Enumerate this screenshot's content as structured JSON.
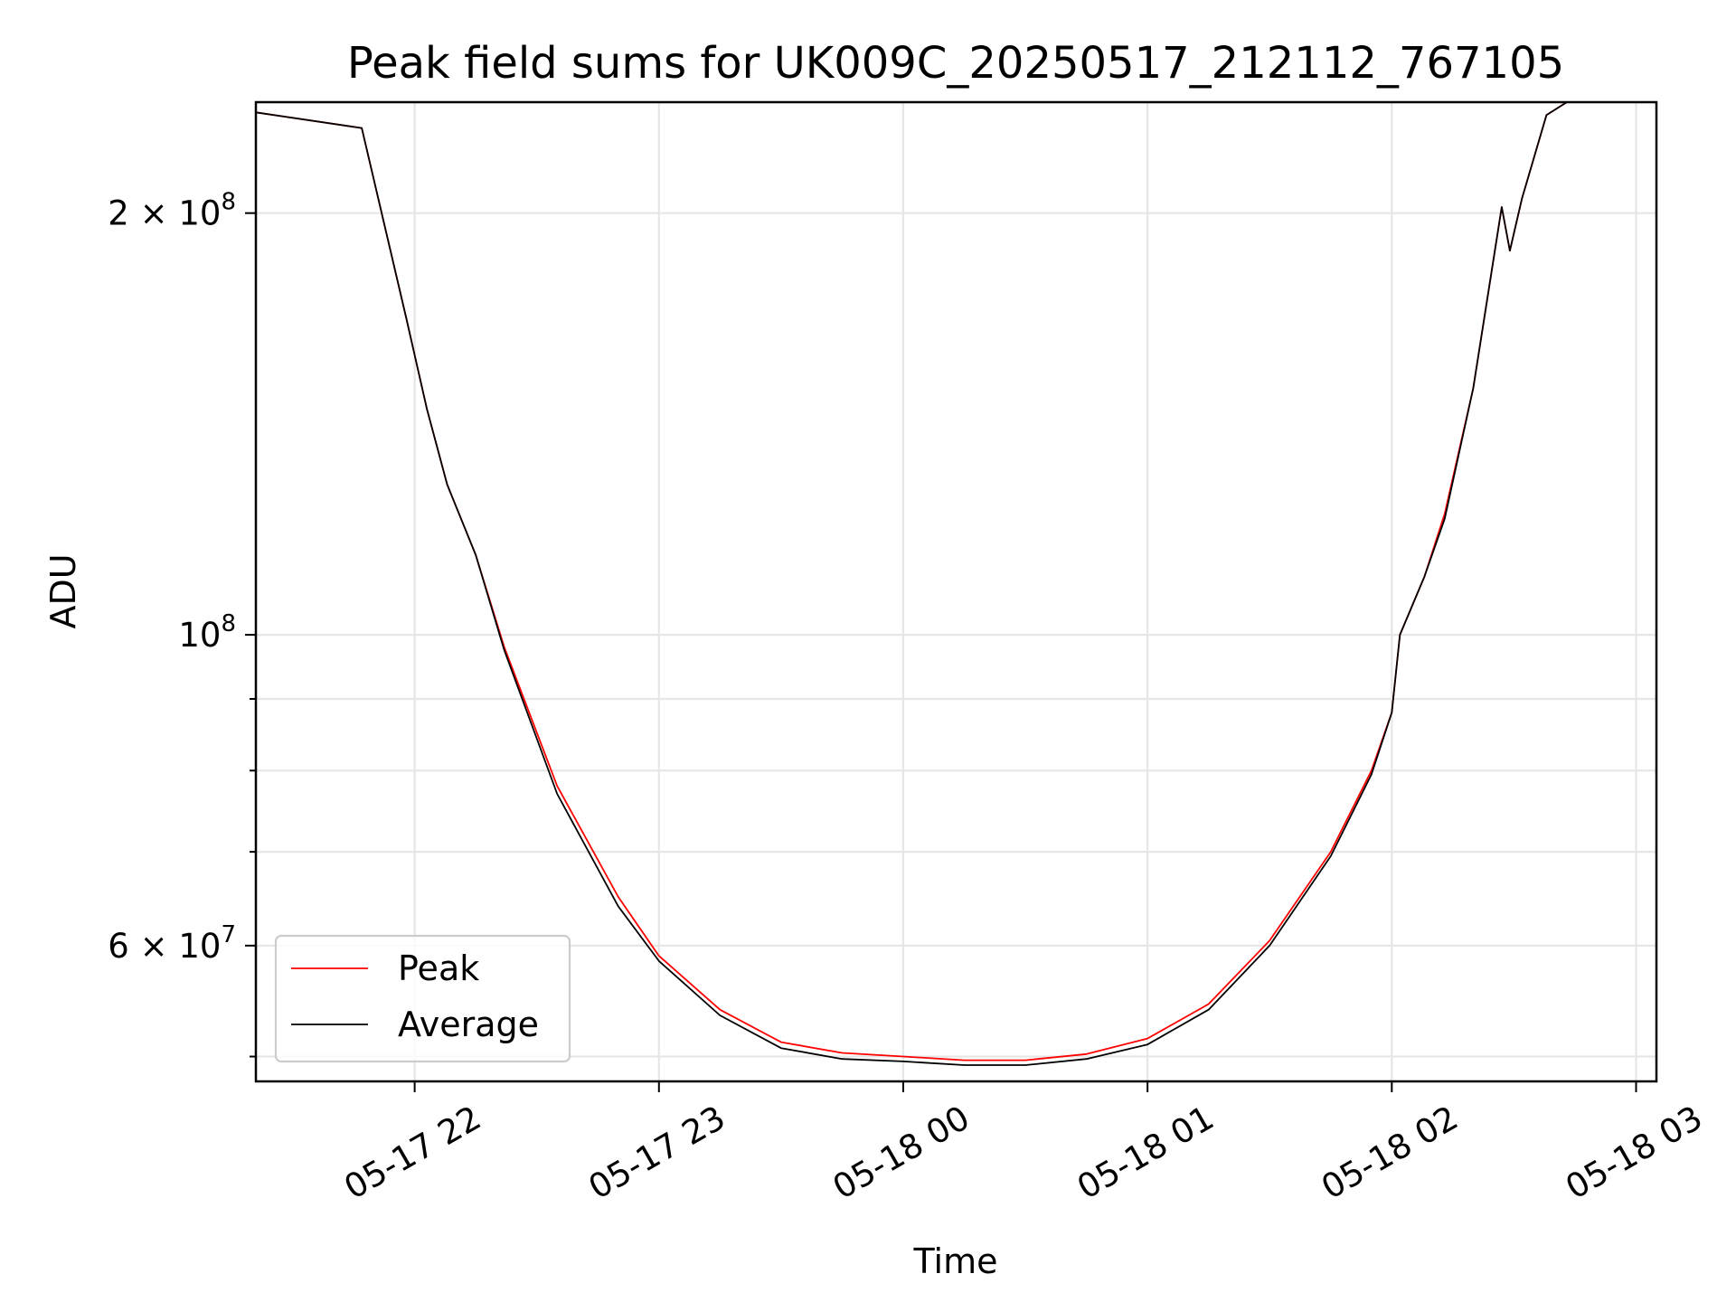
{
  "chart_data": {
    "type": "line",
    "title": "Peak field sums for UK009C_20250517_212112_767105",
    "xlabel": "Time",
    "ylabel": "ADU",
    "yscale": "log",
    "xlim": [
      "2025-05-17 21:21",
      "2025-05-18 03:05"
    ],
    "ylim": [
      48000000,
      240000000
    ],
    "grid": true,
    "legend_position": "lower left",
    "x_ticks": [
      "05-17 22",
      "05-17 23",
      "05-18 00",
      "05-18 01",
      "05-18 02",
      "05-18 03"
    ],
    "y_ticks": [
      {
        "value": 200000000,
        "label": "2 × 10^8",
        "mant": "2 × 10",
        "exp": "8"
      },
      {
        "value": 100000000,
        "label": "10^8",
        "mant": "10",
        "exp": "8"
      },
      {
        "value": 60000000,
        "label": "6 × 10^7",
        "mant": "6 × 10",
        "exp": "7"
      }
    ],
    "x": [
      "2025-05-17 21:21",
      "2025-05-17 21:47",
      "2025-05-17 21:58",
      "2025-05-17 22:03",
      "2025-05-17 22:08",
      "2025-05-17 22:15",
      "2025-05-17 22:22",
      "2025-05-17 22:35",
      "2025-05-17 22:50",
      "2025-05-17 23:00",
      "2025-05-17 23:15",
      "2025-05-17 23:30",
      "2025-05-17 23:45",
      "2025-05-18 00:00",
      "2025-05-18 00:15",
      "2025-05-18 00:30",
      "2025-05-18 00:45",
      "2025-05-18 01:00",
      "2025-05-18 01:15",
      "2025-05-18 01:30",
      "2025-05-18 01:45",
      "2025-05-18 01:55",
      "2025-05-18 02:00",
      "2025-05-18 02:02",
      "2025-05-18 02:08",
      "2025-05-18 02:13",
      "2025-05-18 02:20",
      "2025-05-18 02:27",
      "2025-05-18 02:29",
      "2025-05-18 02:32",
      "2025-05-18 02:38",
      "2025-05-18 02:43",
      "2025-05-18 03:05"
    ],
    "series": [
      {
        "name": "Peak",
        "color": "#ff0000",
        "values": [
          236000000,
          230000000,
          168000000,
          145000000,
          128000000,
          114000000,
          98000000,
          78000000,
          65000000,
          59000000,
          54000000,
          51200000,
          50300000,
          50000000,
          49700000,
          49700000,
          50200000,
          51500000,
          54500000,
          60500000,
          70000000,
          80000000,
          88000000,
          100000000,
          110000000,
          122000000,
          150000000,
          202000000,
          188000000,
          205000000,
          235000000,
          240000000,
          240000000
        ]
      },
      {
        "name": "Average",
        "color": "#000000",
        "values": [
          236000000,
          230000000,
          168000000,
          145000000,
          128000000,
          114000000,
          97500000,
          77000000,
          64000000,
          58500000,
          53500000,
          50700000,
          49800000,
          49600000,
          49300000,
          49300000,
          49800000,
          51000000,
          54000000,
          60000000,
          69500000,
          79500000,
          88000000,
          100000000,
          110000000,
          121000000,
          150000000,
          202000000,
          188000000,
          205000000,
          235000000,
          240000000,
          240000000
        ]
      }
    ]
  }
}
